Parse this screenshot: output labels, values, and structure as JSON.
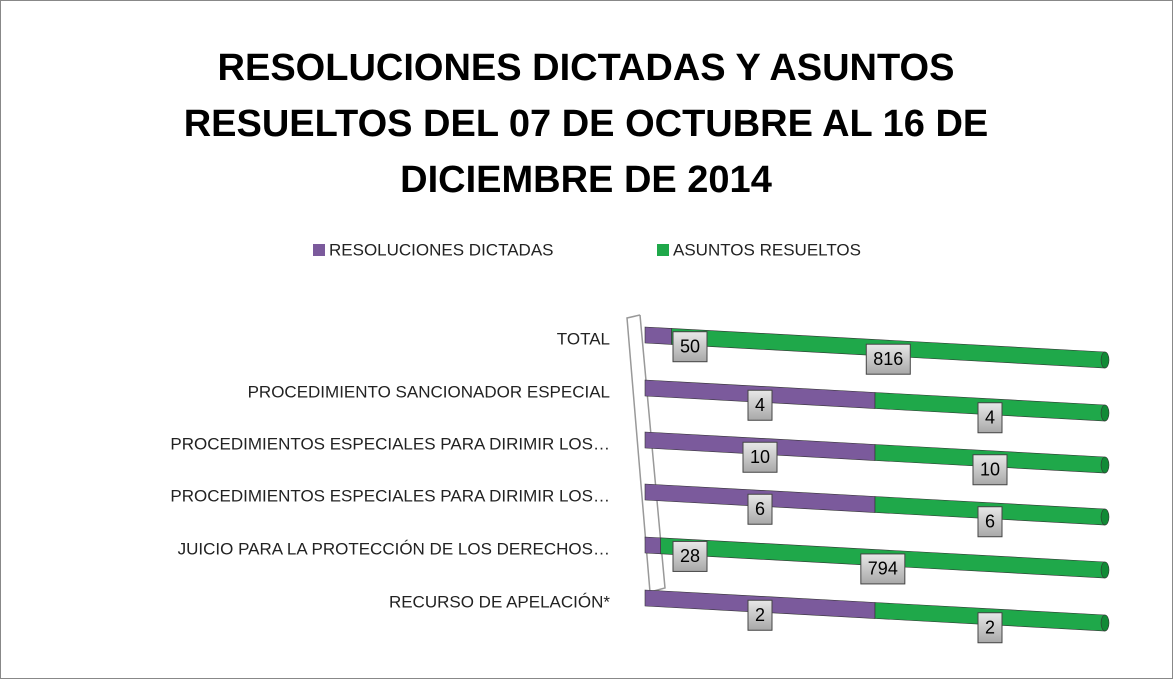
{
  "chart_data": {
    "type": "bar",
    "orientation": "horizontal",
    "stacking": "percent",
    "title": "RESOLUCIONES DICTADAS Y ASUNTOS RESUELTOS DEL 07 DE OCTUBRE AL 16 DE DICIEMBRE DE 2014",
    "categories": [
      "TOTAL",
      "PROCEDIMIENTO SANCIONADOR ESPECIAL",
      "PROCEDIMIENTOS ESPECIALES PARA DIRIMIR LOS…",
      "PROCEDIMIENTOS ESPECIALES PARA DIRIMIR LOS…",
      "JUICIO PARA LA PROTECCIÓN DE LOS DERECHOS…",
      "RECURSO DE APELACIÓN*"
    ],
    "series": [
      {
        "name": "RESOLUCIONES DICTADAS",
        "color": "#7b5a9c",
        "values": [
          50,
          4,
          10,
          6,
          28,
          2
        ]
      },
      {
        "name": "ASUNTOS RESUELTOS",
        "color": "#1fa84a",
        "values": [
          816,
          4,
          10,
          6,
          794,
          2
        ]
      }
    ],
    "legend": "top",
    "data_labels": true
  }
}
